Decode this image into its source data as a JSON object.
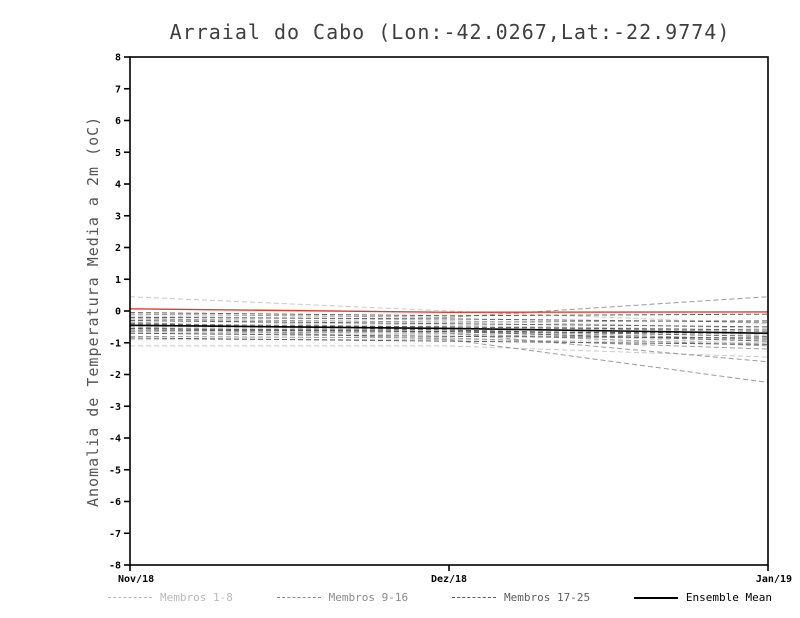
{
  "chart_data": {
    "type": "line",
    "title": "Arraial do Cabo (Lon:-42.0267,Lat:-22.9774)",
    "ylabel": "Anomalia de Temperatura Media a 2m (oC)",
    "xlabel": "",
    "x_categories": [
      "Nov/18",
      "Dez/18",
      "Jan/19"
    ],
    "ylim": [
      -8,
      8
    ],
    "ytick_step": 1,
    "grid": false,
    "legend_position": "bottom",
    "groups": [
      {
        "name": "Membros 1-8",
        "color": "#c9c9c9",
        "style": "dashed",
        "series": [
          [
            0.45,
            0.0,
            -0.4
          ],
          [
            -0.15,
            -0.3,
            -0.55
          ],
          [
            -0.3,
            -0.45,
            -0.6
          ],
          [
            -0.5,
            -0.55,
            -0.75
          ],
          [
            -0.7,
            -0.75,
            -0.85
          ],
          [
            -0.9,
            -0.9,
            -1.0
          ],
          [
            -1.1,
            -1.1,
            -1.45
          ],
          [
            -0.2,
            -0.6,
            -1.05
          ]
        ]
      },
      {
        "name": "Membros 9-16",
        "color": "#9a9a9a",
        "style": "dashed",
        "series": [
          [
            -0.1,
            -0.2,
            0.45
          ],
          [
            -0.25,
            -0.35,
            -0.3
          ],
          [
            -0.4,
            -0.5,
            -0.65
          ],
          [
            -0.55,
            -0.6,
            -0.9
          ],
          [
            -0.65,
            -0.7,
            -1.1
          ],
          [
            -0.8,
            -0.85,
            -1.2
          ],
          [
            -0.35,
            -0.7,
            -1.6
          ],
          [
            -0.5,
            -0.9,
            -2.25
          ]
        ]
      },
      {
        "name": "Membros 17-25",
        "color": "#5f5f5f",
        "style": "dashed",
        "series": [
          [
            -0.05,
            -0.15,
            -0.1
          ],
          [
            -0.2,
            -0.25,
            -0.35
          ],
          [
            -0.3,
            -0.4,
            -0.5
          ],
          [
            -0.45,
            -0.5,
            -0.6
          ],
          [
            -0.6,
            -0.65,
            -0.7
          ],
          [
            -0.7,
            -0.8,
            -0.85
          ],
          [
            -0.85,
            -0.95,
            -1.05
          ],
          [
            -0.4,
            -0.6,
            -0.8
          ],
          [
            -0.55,
            -0.65,
            -0.95
          ]
        ]
      },
      {
        "name": "Ensemble Mean",
        "color": "#000000",
        "style": "solid",
        "series": [
          [
            -0.45,
            -0.55,
            -0.7
          ]
        ]
      }
    ],
    "reference_line": {
      "color": "#e23b2e",
      "style": "solid",
      "values": [
        0.07,
        -0.04,
        -0.03
      ]
    },
    "legend": [
      {
        "label": "Membros 1-8",
        "color": "#b9b9b9",
        "style": "dashed"
      },
      {
        "label": "Membros 9-16",
        "color": "#8a8a8a",
        "style": "dashed"
      },
      {
        "label": "Membros 17-25",
        "color": "#5f5f5f",
        "style": "dashed"
      },
      {
        "label": "Ensemble Mean",
        "color": "#000000",
        "style": "solid"
      }
    ]
  }
}
